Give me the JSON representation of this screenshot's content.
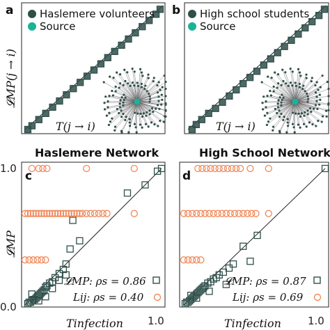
{
  "colors": {
    "marker": "#2f4f4a",
    "source": "#19b39a",
    "orange": "#f08a5b",
    "line": "#222222"
  },
  "chart_data": [
    {
      "type": "scatter",
      "panel": "a",
      "legend": [
        "Haslemere volunteers",
        "Source"
      ],
      "xlabel": "T(j → i)",
      "ylabel": "𝓛MP(j → i)",
      "diagonal": true,
      "series": [
        {
          "values": [
            [
              0.02,
              0.0
            ],
            [
              0.05,
              0.03
            ],
            [
              0.1,
              0.08
            ],
            [
              0.15,
              0.13
            ],
            [
              0.2,
              0.18
            ],
            [
              0.25,
              0.23
            ],
            [
              0.3,
              0.28
            ],
            [
              0.35,
              0.33
            ],
            [
              0.4,
              0.38
            ],
            [
              0.45,
              0.43
            ],
            [
              0.5,
              0.48
            ],
            [
              0.55,
              0.53
            ],
            [
              0.6,
              0.58
            ],
            [
              0.65,
              0.63
            ],
            [
              0.7,
              0.68
            ],
            [
              0.75,
              0.73
            ],
            [
              0.8,
              0.78
            ],
            [
              0.85,
              0.83
            ],
            [
              0.9,
              0.88
            ],
            [
              0.95,
              0.93
            ],
            [
              0.98,
              0.97
            ]
          ]
        }
      ]
    },
    {
      "type": "scatter",
      "panel": "b",
      "legend": [
        "High school students",
        "Source"
      ],
      "xlabel": "T(j → i)",
      "ylabel": "",
      "diagonal": true,
      "series": [
        {
          "values": [
            [
              0.03,
              0.0
            ],
            [
              0.06,
              0.04
            ],
            [
              0.1,
              0.08
            ],
            [
              0.15,
              0.13
            ],
            [
              0.2,
              0.17
            ],
            [
              0.25,
              0.22
            ],
            [
              0.3,
              0.27
            ],
            [
              0.35,
              0.32
            ],
            [
              0.4,
              0.37
            ],
            [
              0.45,
              0.42
            ],
            [
              0.5,
              0.47
            ],
            [
              0.55,
              0.52
            ],
            [
              0.6,
              0.57
            ],
            [
              0.65,
              0.62
            ],
            [
              0.7,
              0.67
            ],
            [
              0.75,
              0.72
            ],
            [
              0.8,
              0.77
            ],
            [
              0.85,
              0.82
            ],
            [
              0.9,
              0.87
            ],
            [
              0.95,
              0.92
            ],
            [
              0.99,
              0.97
            ]
          ]
        }
      ]
    },
    {
      "type": "scatter",
      "panel": "c",
      "title": "Haslemere Network",
      "xlabel": "Tinfection",
      "ylabel": "𝓛MP",
      "xticks": [
        "0.0",
        "1.0"
      ],
      "yticks": [
        "0.0",
        "1.0"
      ],
      "xlim": [
        0,
        1
      ],
      "ylim": [
        0,
        1
      ],
      "diagonal": true,
      "series": [
        {
          "name": "𝓛MP",
          "marker": "square",
          "values": [
            [
              0.02,
              0.01
            ],
            [
              0.03,
              0.02
            ],
            [
              0.04,
              0.02
            ],
            [
              0.05,
              0.03
            ],
            [
              0.06,
              0.04
            ],
            [
              0.07,
              0.04
            ],
            [
              0.08,
              0.05
            ],
            [
              0.09,
              0.06
            ],
            [
              0.1,
              0.07
            ],
            [
              0.11,
              0.08
            ],
            [
              0.12,
              0.09
            ],
            [
              0.13,
              0.1
            ],
            [
              0.14,
              0.11
            ],
            [
              0.15,
              0.13
            ],
            [
              0.16,
              0.14
            ],
            [
              0.18,
              0.16
            ],
            [
              0.2,
              0.17
            ],
            [
              0.22,
              0.2
            ],
            [
              0.25,
              0.23
            ],
            [
              0.28,
              0.26
            ],
            [
              0.3,
              0.3
            ],
            [
              0.33,
              0.41
            ],
            [
              0.4,
              0.47
            ],
            [
              0.35,
              0.62
            ],
            [
              0.75,
              0.82
            ],
            [
              0.88,
              0.88
            ],
            [
              0.97,
              0.98
            ],
            [
              1.0,
              1.0
            ],
            [
              0.05,
              0.08
            ],
            [
              0.1,
              0.03
            ],
            [
              0.2,
              0.12
            ],
            [
              0.15,
              0.06
            ],
            [
              0.25,
              0.18
            ],
            [
              0.3,
              0.22
            ]
          ]
        },
        {
          "name": "Lij",
          "marker": "circle",
          "values": [
            [
              0.0,
              0.67
            ],
            [
              0.02,
              0.67
            ],
            [
              0.04,
              0.67
            ],
            [
              0.06,
              0.67
            ],
            [
              0.08,
              0.67
            ],
            [
              0.1,
              0.67
            ],
            [
              0.12,
              0.67
            ],
            [
              0.14,
              0.67
            ],
            [
              0.16,
              0.67
            ],
            [
              0.18,
              0.67
            ],
            [
              0.2,
              0.67
            ],
            [
              0.22,
              0.67
            ],
            [
              0.24,
              0.67
            ],
            [
              0.26,
              0.67
            ],
            [
              0.28,
              0.67
            ],
            [
              0.3,
              0.67
            ],
            [
              0.32,
              0.67
            ],
            [
              0.34,
              0.67
            ],
            [
              0.36,
              0.67
            ],
            [
              0.38,
              0.67
            ],
            [
              0.4,
              0.67
            ],
            [
              0.42,
              0.67
            ],
            [
              0.45,
              0.67
            ],
            [
              0.48,
              0.67
            ],
            [
              0.51,
              0.67
            ],
            [
              0.54,
              0.67
            ],
            [
              0.57,
              0.67
            ],
            [
              0.6,
              0.67
            ],
            [
              0.8,
              0.67
            ],
            [
              0.05,
              1.0
            ],
            [
              0.1,
              1.0
            ],
            [
              0.13,
              1.0
            ],
            [
              0.16,
              1.0
            ],
            [
              0.45,
              1.0
            ],
            [
              0.8,
              1.0
            ],
            [
              0.0,
              0.33
            ],
            [
              0.03,
              0.33
            ],
            [
              0.06,
              0.33
            ],
            [
              0.09,
              0.33
            ],
            [
              0.12,
              0.33
            ],
            [
              0.15,
              0.33
            ]
          ]
        }
      ],
      "stats": [
        {
          "label": "𝓛MP: ρs = 0.86"
        },
        {
          "label": "Lij: ρs = 0.40"
        }
      ]
    },
    {
      "type": "scatter",
      "panel": "d",
      "title": "High School Network",
      "xlabel": "Tinfection",
      "ylabel": "",
      "xticks": [
        "1.0"
      ],
      "xlim": [
        0,
        1
      ],
      "ylim": [
        0,
        1
      ],
      "diagonal": true,
      "series": [
        {
          "name": "𝓛MP",
          "marker": "square",
          "values": [
            [
              0.01,
              0.01
            ],
            [
              0.02,
              0.02
            ],
            [
              0.03,
              0.02
            ],
            [
              0.04,
              0.03
            ],
            [
              0.05,
              0.04
            ],
            [
              0.06,
              0.05
            ],
            [
              0.07,
              0.06
            ],
            [
              0.08,
              0.07
            ],
            [
              0.09,
              0.08
            ],
            [
              0.1,
              0.09
            ],
            [
              0.11,
              0.1
            ],
            [
              0.12,
              0.11
            ],
            [
              0.13,
              0.12
            ],
            [
              0.14,
              0.13
            ],
            [
              0.15,
              0.14
            ],
            [
              0.17,
              0.16
            ],
            [
              0.19,
              0.17
            ],
            [
              0.21,
              0.19
            ],
            [
              0.23,
              0.2
            ],
            [
              0.25,
              0.22
            ],
            [
              0.28,
              0.24
            ],
            [
              0.32,
              0.27
            ],
            [
              0.35,
              0.3
            ],
            [
              0.42,
              0.43
            ],
            [
              0.52,
              0.51
            ],
            [
              0.47,
              0.32
            ],
            [
              0.3,
              0.15
            ],
            [
              0.18,
              0.1
            ],
            [
              1.0,
              1.0
            ],
            [
              0.05,
              0.07
            ],
            [
              0.09,
              0.05
            ]
          ]
        },
        {
          "name": "Lij",
          "marker": "circle",
          "values": [
            [
              0.1,
              1.0
            ],
            [
              0.13,
              1.0
            ],
            [
              0.16,
              1.0
            ],
            [
              0.19,
              1.0
            ],
            [
              0.22,
              1.0
            ],
            [
              0.25,
              1.0
            ],
            [
              0.28,
              1.0
            ],
            [
              0.31,
              1.0
            ],
            [
              0.34,
              1.0
            ],
            [
              0.37,
              1.0
            ],
            [
              0.4,
              1.0
            ],
            [
              0.47,
              1.0
            ],
            [
              0.6,
              1.0
            ],
            [
              0.0,
              0.67
            ],
            [
              0.03,
              0.67
            ],
            [
              0.06,
              0.67
            ],
            [
              0.09,
              0.67
            ],
            [
              0.12,
              0.67
            ],
            [
              0.15,
              0.67
            ],
            [
              0.18,
              0.67
            ],
            [
              0.21,
              0.67
            ],
            [
              0.24,
              0.67
            ],
            [
              0.27,
              0.67
            ],
            [
              0.3,
              0.67
            ],
            [
              0.33,
              0.67
            ],
            [
              0.36,
              0.67
            ],
            [
              0.39,
              0.67
            ],
            [
              0.42,
              0.67
            ],
            [
              0.45,
              0.67
            ],
            [
              0.48,
              0.67
            ],
            [
              0.51,
              0.67
            ],
            [
              0.6,
              0.67
            ],
            [
              0.0,
              0.33
            ],
            [
              0.03,
              0.33
            ],
            [
              0.06,
              0.33
            ],
            [
              0.09,
              0.33
            ],
            [
              0.12,
              0.33
            ]
          ]
        }
      ],
      "stats": [
        {
          "label": "𝓛MP: ρs = 0.87"
        },
        {
          "label": "Lij: ρs = 0.69"
        }
      ]
    }
  ]
}
